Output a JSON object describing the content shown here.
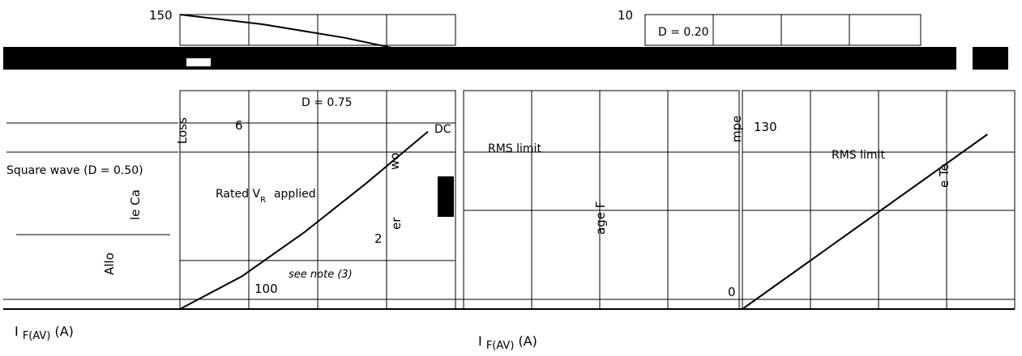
{
  "figure": {
    "left_xlabel_prefix": "I",
    "left_xlabel_sub": "F(AV)",
    "left_xlabel_unit": "(A)",
    "right_xlabel_prefix": "I",
    "right_xlabel_sub": "F(AV)",
    "right_xlabel_unit": "(A)"
  },
  "chart_data": [
    {
      "type": "line",
      "title": "",
      "ylabel": "Allowable Case Temperature",
      "xlabel": "I F(AV) (A)",
      "y_ticks": [
        "150",
        "100"
      ],
      "x_ticks": [],
      "ylim": [
        100,
        150
      ],
      "grid": true,
      "annotations": [
        "Rated V",
        "R",
        "applied",
        "see note (3)",
        "Square wave (D = 0.50)"
      ],
      "series": [
        {
          "name": "",
          "x": [
            0,
            1,
            2,
            3
          ],
          "y": [
            150,
            145,
            138,
            129
          ]
        }
      ]
    },
    {
      "type": "line",
      "title": "",
      "ylabel": "Average Forward Power Loss",
      "xlabel": "I F(AV) (A)",
      "y_ticks": [
        "6",
        "2"
      ],
      "x_ticks": [],
      "ylim": [
        0,
        8
      ],
      "grid": true,
      "annotations": [
        "D = 0.75",
        "DC",
        "RMS limit"
      ],
      "series": [
        {
          "name": "",
          "x": [
            0,
            1,
            2,
            3,
            4
          ],
          "y": [
            0,
            1.2,
            2.8,
            4.6,
            6.5
          ]
        }
      ]
    },
    {
      "type": "line",
      "title": "",
      "ylabel": "Allowable Temperature",
      "xlabel": "",
      "y_ticks": [
        "10",
        "130",
        "0"
      ],
      "x_ticks": [],
      "ylim": [
        0,
        10
      ],
      "grid": true,
      "annotations": [
        "D = 0.20",
        "RMS limit"
      ],
      "series": [
        {
          "name": "",
          "x": [
            0,
            1,
            2,
            3,
            4
          ],
          "y": [
            0,
            2,
            4,
            6,
            8
          ]
        }
      ]
    }
  ]
}
